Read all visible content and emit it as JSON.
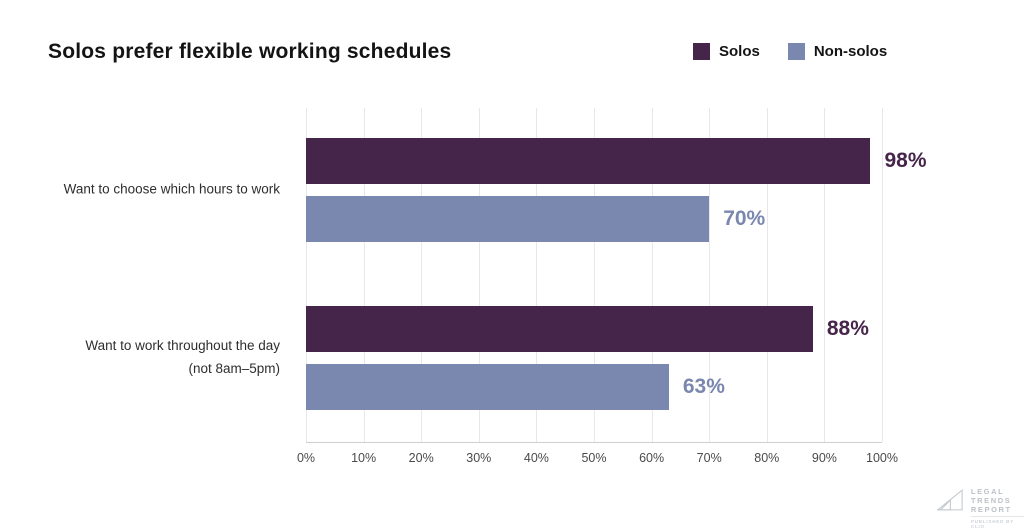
{
  "title": "Solos prefer flexible working schedules",
  "chart_data": {
    "type": "bar",
    "orientation": "horizontal",
    "title": "Solos prefer flexible working schedules",
    "categories": [
      "Want to choose which hours to work",
      "Want to work throughout the day\n(not 8am–5pm)"
    ],
    "series": [
      {
        "name": "Solos",
        "color": "#46254A",
        "values": [
          98,
          88
        ]
      },
      {
        "name": "Non-solos",
        "color": "#7A87AF",
        "values": [
          70,
          63
        ]
      }
    ],
    "value_suffix": "%",
    "xlim": [
      0,
      100
    ],
    "x_ticks": [
      "0%",
      "10%",
      "20%",
      "30%",
      "40%",
      "50%",
      "60%",
      "70%",
      "80%",
      "90%",
      "100%"
    ],
    "grid": "vertical-only",
    "legend_position": "top-right",
    "xlabel": "",
    "ylabel": ""
  },
  "logo": {
    "line1": "LEGAL",
    "line2": "TRENDS",
    "line3": "REPORT",
    "subline": "PUBLISHED BY CLIO"
  }
}
